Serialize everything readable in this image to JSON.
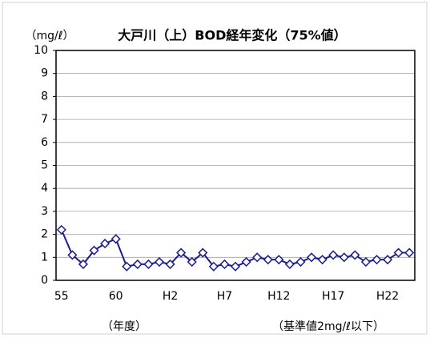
{
  "chart_data": {
    "type": "line",
    "title": "大戸川（上）BOD経年変化（75%値）",
    "y_label": "（mg/ℓ）",
    "x_label": "（年度）",
    "annotation": "（基準値2mg/ℓ以下）",
    "categories": [
      "55",
      null,
      null,
      null,
      null,
      "60",
      null,
      null,
      null,
      null,
      "H2",
      null,
      null,
      null,
      null,
      "H7",
      null,
      null,
      null,
      null,
      "H12",
      null,
      null,
      null,
      null,
      "H17",
      null,
      null,
      null,
      null,
      "H22",
      null,
      null
    ],
    "series": [
      {
        "name": "BOD",
        "color": "#1c1c8c",
        "values": [
          2.2,
          1.1,
          0.7,
          1.3,
          1.6,
          1.8,
          0.6,
          0.7,
          0.7,
          0.8,
          0.7,
          1.2,
          0.8,
          1.2,
          0.6,
          0.7,
          0.6,
          0.8,
          1.0,
          0.9,
          0.9,
          0.7,
          0.8,
          1.0,
          0.9,
          1.1,
          1.0,
          1.1,
          0.8,
          0.9,
          0.9,
          1.2,
          1.2
        ]
      }
    ],
    "ylim": [
      0,
      10
    ],
    "yticks": [
      0,
      1,
      2,
      3,
      4,
      5,
      6,
      7,
      8,
      9,
      10
    ],
    "grid": true
  }
}
